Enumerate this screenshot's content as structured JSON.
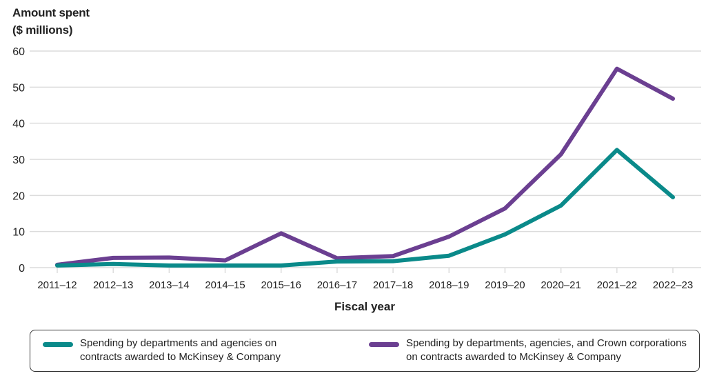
{
  "chart_data": {
    "type": "line",
    "title": "",
    "ylabel_lines": [
      "Amount spent",
      "($ millions)"
    ],
    "xlabel": "Fiscal year",
    "ylim": [
      0,
      60
    ],
    "yticks": [
      0,
      10,
      20,
      30,
      40,
      50,
      60
    ],
    "grid": true,
    "legend_position": "bottom",
    "categories": [
      "2011–12",
      "2012–13",
      "2013–14",
      "2014–15",
      "2015–16",
      "2016–17",
      "2017–18",
      "2018–19",
      "2019–20",
      "2020–21",
      "2021–22",
      "2022–23"
    ],
    "series": [
      {
        "name": "Spending by departments and agencies on contracts awarded to McKinsey & Company",
        "legend_lines": [
          "Spending by departments and agencies on",
          "contracts awarded to McKinsey & Company"
        ],
        "color": "#0a8a8a",
        "values": [
          0.6,
          1.0,
          0.6,
          0.6,
          0.6,
          1.7,
          1.8,
          3.3,
          9.2,
          17.2,
          32.6,
          19.5
        ]
      },
      {
        "name": "Spending by departments, agencies, and Crown corporations on contracts awarded to McKinsey & Company",
        "legend_lines": [
          "Spending by departments, agencies, and Crown corporations",
          "on contracts awarded to McKinsey & Company"
        ],
        "color": "#6b3f91",
        "values": [
          0.8,
          2.7,
          2.8,
          2.0,
          9.5,
          2.6,
          3.2,
          8.6,
          16.4,
          31.4,
          55.1,
          46.8
        ]
      }
    ]
  }
}
